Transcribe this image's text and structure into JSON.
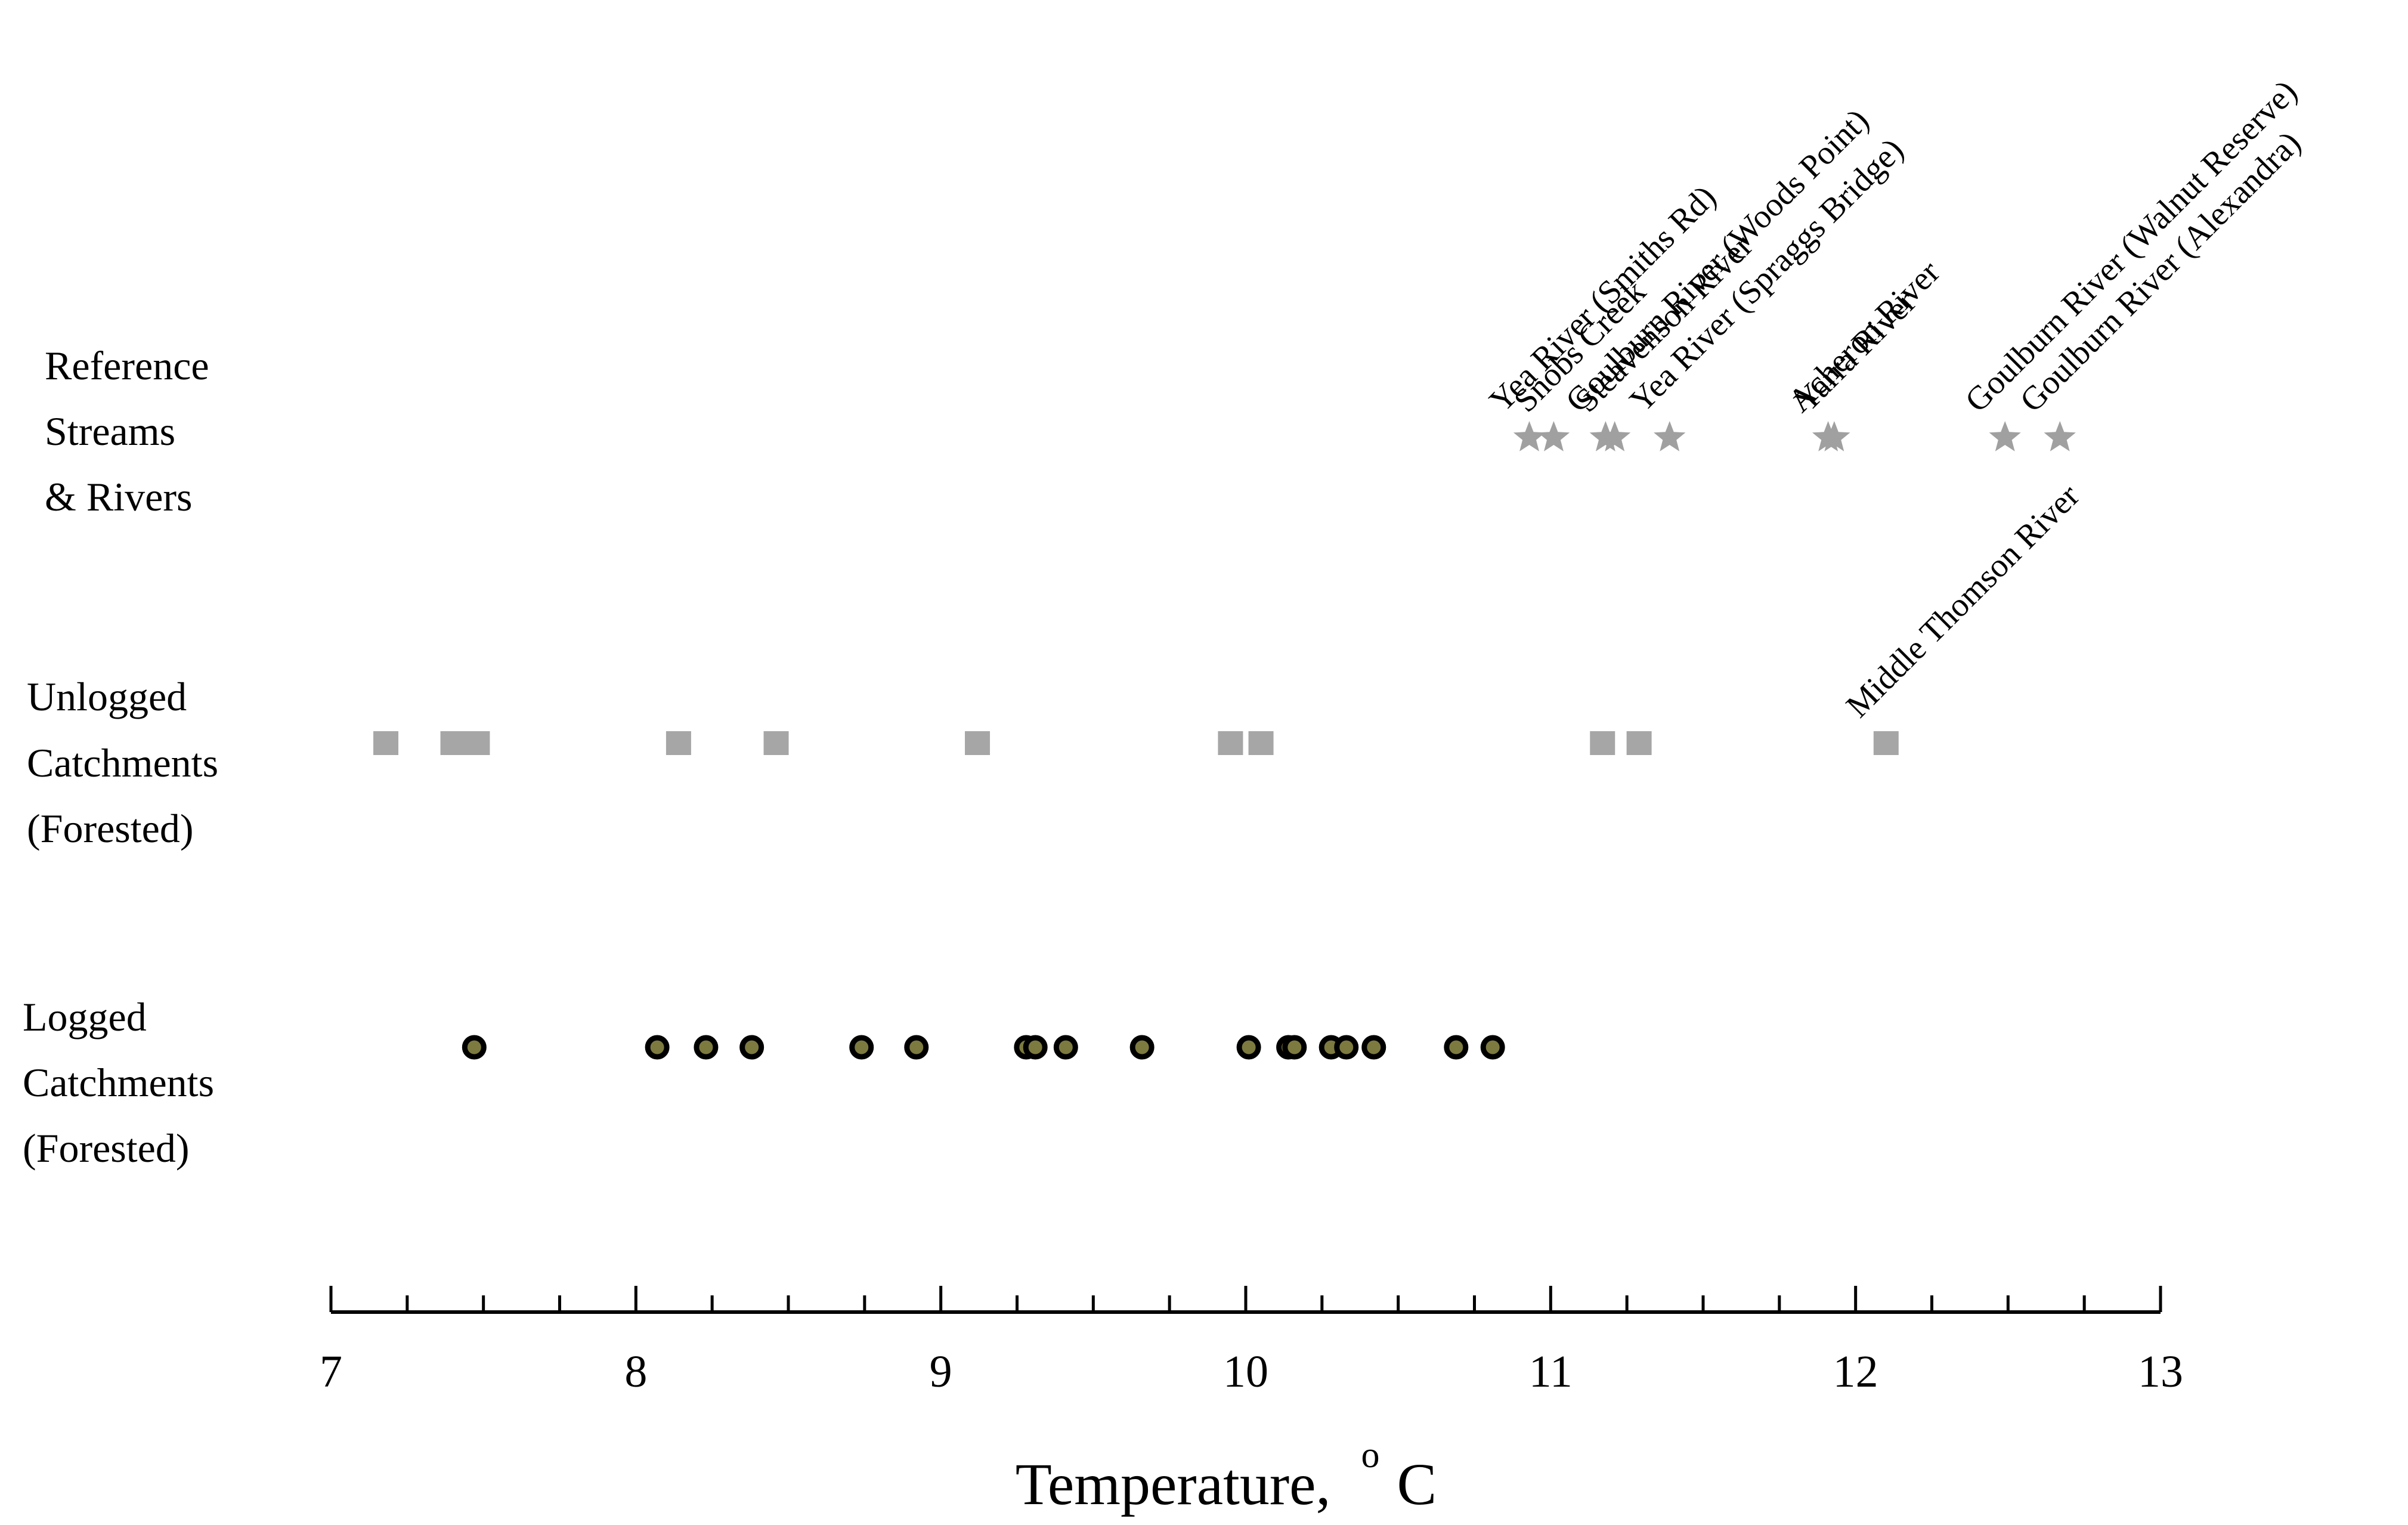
{
  "chart_data": {
    "type": "scatter",
    "title": "",
    "xlabel": "Temperature,",
    "xlabel_unit_superscript": "o",
    "xlabel_unit": "C",
    "xlim": [
      7,
      13
    ],
    "x_ticks": [
      7,
      8,
      9,
      10,
      11,
      12,
      13
    ],
    "x_tick_labels": [
      "7",
      "8",
      "9",
      "10",
      "11",
      "12",
      "13"
    ],
    "minor_tick_step": 0.25,
    "grid": false,
    "legend": "none",
    "colors": {
      "reference_marker": "#a0a0a0",
      "unlogged_marker": "#a6a6a6",
      "logged_fill": "#7d7a40",
      "logged_edge": "#000000",
      "axis": "#000000"
    },
    "categories": [
      {
        "key": "reference",
        "label_lines": [
          "Reference",
          "Streams",
          "& Rivers"
        ],
        "marker": "star",
        "points": [
          {
            "x": 10.93,
            "label": "Yea River (Smiths Rd)"
          },
          {
            "x": 11.01,
            "label": "Snobs Creek"
          },
          {
            "x": 11.18,
            "label": "Goulburn River (Woods Point)"
          },
          {
            "x": 11.21,
            "label": "Steavenson River"
          },
          {
            "x": 11.39,
            "label": "Yea River (Spraggs Bridge)"
          },
          {
            "x": 11.91,
            "label": "Acheron River"
          },
          {
            "x": 11.93,
            "label": "Yarra River"
          },
          {
            "x": 12.49,
            "label": "Goulburn River (Walnut Reserve)"
          },
          {
            "x": 12.67,
            "label": "Goulburn River (Alexandra)"
          }
        ]
      },
      {
        "key": "unlogged",
        "label_lines": [
          "Unlogged",
          "Catchments",
          "(Forested)"
        ],
        "marker": "square",
        "points": [
          {
            "x": 7.18
          },
          {
            "x": 7.4
          },
          {
            "x": 7.48
          },
          {
            "x": 8.14
          },
          {
            "x": 8.46
          },
          {
            "x": 9.12
          },
          {
            "x": 9.95
          },
          {
            "x": 10.05
          },
          {
            "x": 11.17
          },
          {
            "x": 11.29
          },
          {
            "x": 12.1,
            "label": "Middle Thomson River"
          }
        ]
      },
      {
        "key": "logged",
        "label_lines": [
          "Logged",
          "Catchments",
          "(Forested)"
        ],
        "marker": "circle",
        "points": [
          {
            "x": 7.47
          },
          {
            "x": 8.07
          },
          {
            "x": 8.23
          },
          {
            "x": 8.38
          },
          {
            "x": 8.74
          },
          {
            "x": 8.92
          },
          {
            "x": 9.28
          },
          {
            "x": 9.31
          },
          {
            "x": 9.41
          },
          {
            "x": 9.66
          },
          {
            "x": 10.01
          },
          {
            "x": 10.14
          },
          {
            "x": 10.16
          },
          {
            "x": 10.28
          },
          {
            "x": 10.33
          },
          {
            "x": 10.42
          },
          {
            "x": 10.69
          },
          {
            "x": 10.81
          }
        ]
      }
    ]
  }
}
